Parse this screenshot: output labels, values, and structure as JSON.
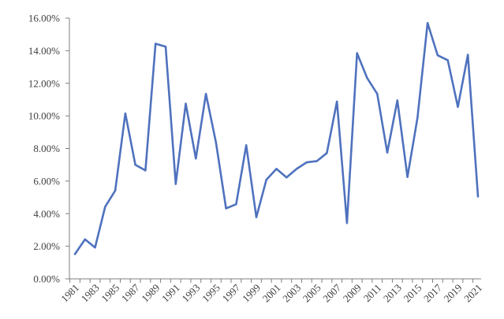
{
  "chart_data": {
    "type": "line",
    "title": "",
    "xlabel": "",
    "ylabel": "",
    "x": [
      1981,
      1982,
      1983,
      1984,
      1985,
      1986,
      1987,
      1988,
      1989,
      1990,
      1991,
      1992,
      1993,
      1994,
      1995,
      1996,
      1997,
      1998,
      1999,
      2000,
      2001,
      2002,
      2003,
      2004,
      2005,
      2006,
      2007,
      2008,
      2009,
      2010,
      2011,
      2012,
      2013,
      2014,
      2015,
      2016,
      2017,
      2018,
      2019,
      2020,
      2021
    ],
    "x_tick_labels": [
      "1981",
      "1983",
      "1985",
      "1987",
      "1989",
      "1991",
      "1993",
      "1995",
      "1997",
      "1999",
      "2001",
      "2003",
      "2005",
      "2007",
      "2009",
      "2011",
      "2013",
      "2015",
      "2017",
      "2019",
      "2021"
    ],
    "y_tick_labels": [
      "0.00%",
      "2.00%",
      "4.00%",
      "6.00%",
      "8.00%",
      "10.00%",
      "12.00%",
      "14.00%",
      "16.00%"
    ],
    "ylim": [
      0,
      0.16
    ],
    "y_format": "percent",
    "grid": false,
    "legend": "none",
    "series": [
      {
        "color": "#4f72be",
        "values": [
          0.0152,
          0.0242,
          0.0192,
          0.0442,
          0.0542,
          0.1015,
          0.07,
          0.0665,
          0.1443,
          0.1425,
          0.0582,
          0.1075,
          0.0738,
          0.1135,
          0.0835,
          0.0432,
          0.0458,
          0.082,
          0.0378,
          0.0608,
          0.0675,
          0.0622,
          0.0675,
          0.0715,
          0.0722,
          0.0772,
          0.1088,
          0.0342,
          0.1385,
          0.1232,
          0.1135,
          0.0775,
          0.1095,
          0.0625,
          0.0988,
          0.157,
          0.1372,
          0.1342,
          0.1055,
          0.1375,
          0.0505
        ]
      }
    ],
    "colors": {
      "axis": "#7f7f7f",
      "tick_text": "#404040"
    }
  }
}
